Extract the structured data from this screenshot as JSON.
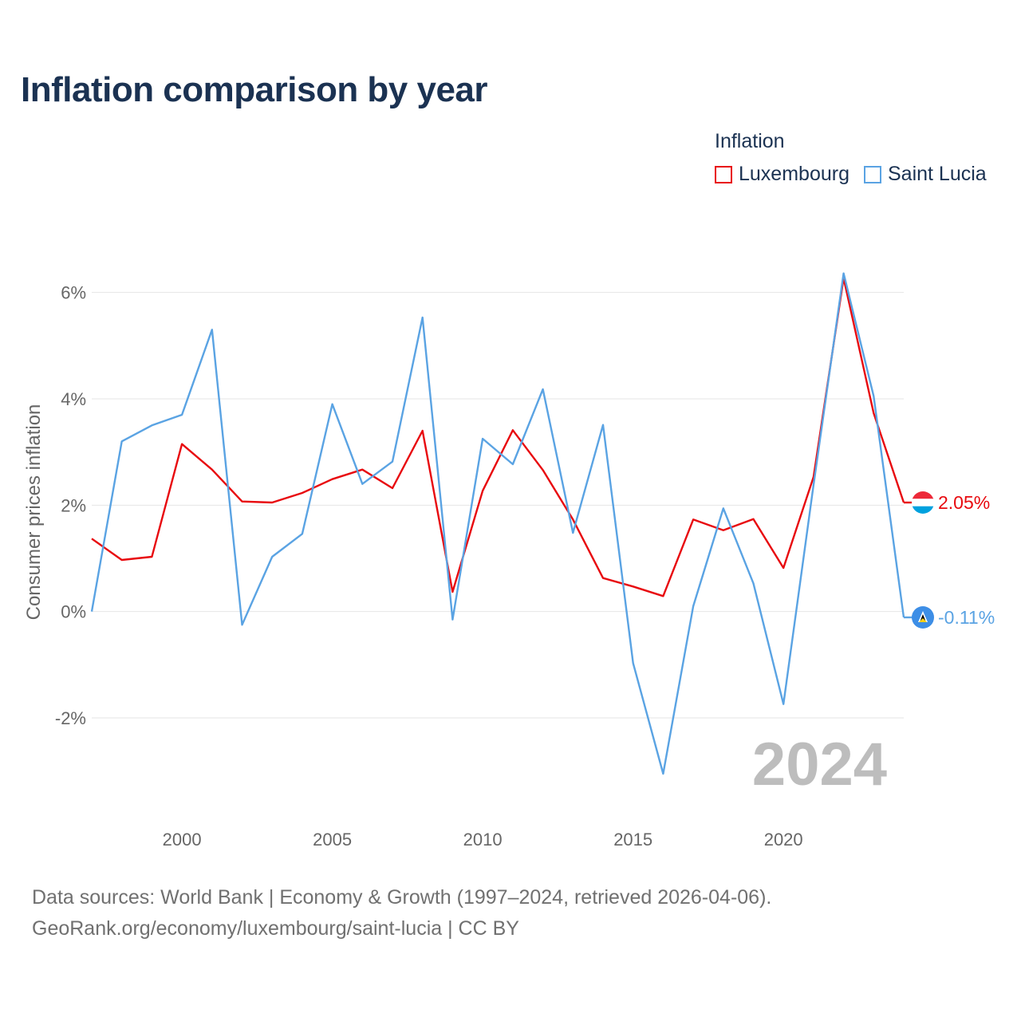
{
  "title": "Inflation comparison by year",
  "legend": {
    "heading": "Inflation",
    "items": [
      {
        "name": "Luxembourg",
        "color": "#e8090e"
      },
      {
        "name": "Saint Lucia",
        "color": "#5aa3e3"
      }
    ]
  },
  "source": {
    "line1": "Data sources: World Bank | Economy & Growth (1997–2024, retrieved 2026-04-06).",
    "line2": "GeoRank.org/economy/luxembourg/saint-lucia | CC BY"
  },
  "chart_data": {
    "type": "line",
    "title": "Inflation comparison by year",
    "xlabel": "",
    "ylabel": "Consumer prices inflation",
    "x": [
      1997,
      1998,
      1999,
      2000,
      2001,
      2002,
      2003,
      2004,
      2005,
      2006,
      2007,
      2008,
      2009,
      2010,
      2011,
      2012,
      2013,
      2014,
      2015,
      2016,
      2017,
      2018,
      2019,
      2020,
      2021,
      2022,
      2023,
      2024
    ],
    "xlim": [
      1997,
      2024
    ],
    "ylim": [
      -3.5,
      7.0
    ],
    "xticks": [
      2000,
      2005,
      2010,
      2015,
      2020
    ],
    "xtick_labels": [
      "2000",
      "2005",
      "2010",
      "2015",
      "2020"
    ],
    "yticks": [
      -2,
      0,
      2,
      4,
      6
    ],
    "ytick_labels": [
      "-2%",
      "0%",
      "2%",
      "4%",
      "6%"
    ],
    "grid": true,
    "year_overlay": "2024",
    "series": [
      {
        "name": "Luxembourg",
        "color": "#e8090e",
        "end_label": "2.05%",
        "values": [
          1.37,
          0.97,
          1.03,
          3.15,
          2.67,
          2.07,
          2.05,
          2.23,
          2.49,
          2.67,
          2.32,
          3.4,
          0.37,
          2.27,
          3.41,
          2.66,
          1.73,
          0.63,
          0.47,
          0.29,
          1.73,
          1.53,
          1.74,
          0.82,
          2.53,
          6.27,
          3.73,
          2.05
        ]
      },
      {
        "name": "Saint Lucia",
        "color": "#5aa3e3",
        "end_label": "-0.11%",
        "values": [
          0.0,
          3.2,
          3.5,
          3.7,
          5.3,
          -0.25,
          1.03,
          1.46,
          3.9,
          2.4,
          2.82,
          5.53,
          -0.15,
          3.25,
          2.77,
          4.18,
          1.48,
          3.51,
          -0.97,
          -3.05,
          0.1,
          1.94,
          0.53,
          -1.74,
          2.38,
          6.36,
          4.05,
          -0.11
        ]
      }
    ]
  }
}
